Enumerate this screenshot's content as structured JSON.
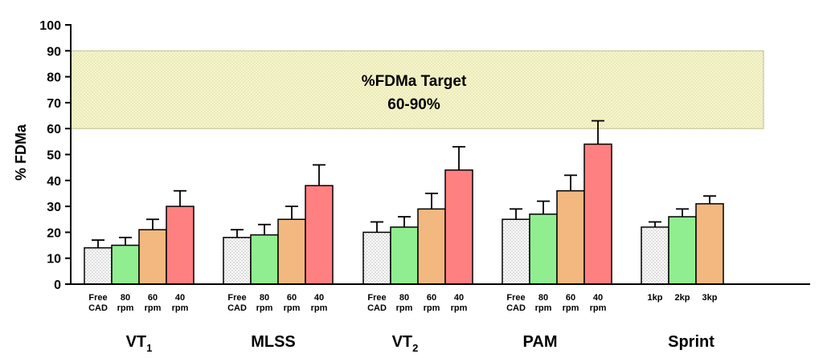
{
  "chart_data": {
    "type": "bar",
    "ylabel": "% FDMa",
    "ylim": [
      0,
      100
    ],
    "yticks": [
      0,
      10,
      20,
      30,
      40,
      50,
      60,
      70,
      80,
      90,
      100
    ],
    "grid": false,
    "target_band": {
      "from": 60,
      "to": 90,
      "label_line1": "%FDMa Target",
      "label_line2": "60-90%"
    },
    "colors": {
      "free": "#ffffff",
      "80": "#90ee90",
      "60": "#f2b880",
      "40": "#ff8080",
      "band": "#f5f5c8"
    },
    "groups": [
      {
        "name": "VT",
        "subscript": "1",
        "bars": [
          {
            "label": [
              "Free",
              "CAD"
            ],
            "value": 14,
            "error": 3,
            "color": "free"
          },
          {
            "label": [
              "80",
              "rpm"
            ],
            "value": 15,
            "error": 3,
            "color": "80"
          },
          {
            "label": [
              "60",
              "rpm"
            ],
            "value": 21,
            "error": 4,
            "color": "60"
          },
          {
            "label": [
              "40",
              "rpm"
            ],
            "value": 30,
            "error": 6,
            "color": "40"
          }
        ]
      },
      {
        "name": "MLSS",
        "subscript": "",
        "bars": [
          {
            "label": [
              "Free",
              "CAD"
            ],
            "value": 18,
            "error": 3,
            "color": "free"
          },
          {
            "label": [
              "80",
              "rpm"
            ],
            "value": 19,
            "error": 4,
            "color": "80"
          },
          {
            "label": [
              "60",
              "rpm"
            ],
            "value": 25,
            "error": 5,
            "color": "60"
          },
          {
            "label": [
              "40",
              "rpm"
            ],
            "value": 38,
            "error": 8,
            "color": "40"
          }
        ]
      },
      {
        "name": "VT",
        "subscript": "2",
        "bars": [
          {
            "label": [
              "Free",
              "CAD"
            ],
            "value": 20,
            "error": 4,
            "color": "free"
          },
          {
            "label": [
              "80",
              "rpm"
            ],
            "value": 22,
            "error": 4,
            "color": "80"
          },
          {
            "label": [
              "60",
              "rpm"
            ],
            "value": 29,
            "error": 6,
            "color": "60"
          },
          {
            "label": [
              "40",
              "rpm"
            ],
            "value": 44,
            "error": 9,
            "color": "40"
          }
        ]
      },
      {
        "name": "PAM",
        "subscript": "",
        "bars": [
          {
            "label": [
              "Free",
              "CAD"
            ],
            "value": 25,
            "error": 4,
            "color": "free"
          },
          {
            "label": [
              "80",
              "rpm"
            ],
            "value": 27,
            "error": 5,
            "color": "80"
          },
          {
            "label": [
              "60",
              "rpm"
            ],
            "value": 36,
            "error": 6,
            "color": "60"
          },
          {
            "label": [
              "40",
              "rpm"
            ],
            "value": 54,
            "error": 9,
            "color": "40"
          }
        ]
      },
      {
        "name": "Sprint",
        "subscript": "",
        "bars": [
          {
            "label": [
              "1kp"
            ],
            "value": 22,
            "error": 2,
            "color": "free"
          },
          {
            "label": [
              "2kp"
            ],
            "value": 26,
            "error": 3,
            "color": "80"
          },
          {
            "label": [
              "3kp"
            ],
            "value": 31,
            "error": 3,
            "color": "60"
          }
        ]
      }
    ]
  }
}
